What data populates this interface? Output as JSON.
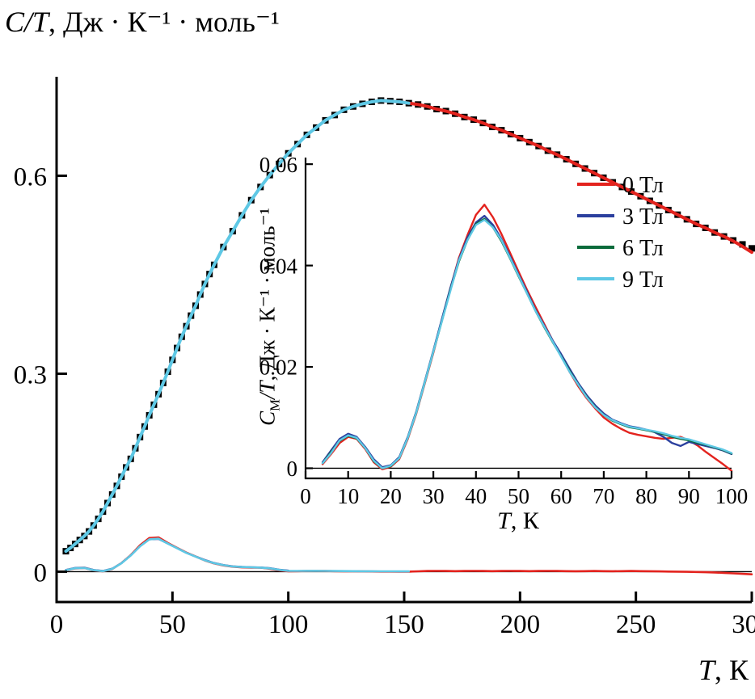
{
  "legend": {
    "items": [
      {
        "label": "0 Тл",
        "color": "#e3231e"
      },
      {
        "label": "3 Тл",
        "color": "#2b3f9e"
      },
      {
        "label": "6 Тл",
        "color": "#0b6b3b"
      },
      {
        "label": "9 Тл",
        "color": "#5ec8e5"
      }
    ]
  },
  "chart_data": [
    {
      "id": "main",
      "type": "line",
      "title": "",
      "xlabel_var": "T",
      "xlabel_units": ", К",
      "ylabel_var": "C/T",
      "ylabel_units": ", Дж · К⁻¹ · моль⁻¹",
      "xlim": [
        0,
        300
      ],
      "ylim": [
        -0.046,
        0.75
      ],
      "xticks": [
        0,
        50,
        100,
        150,
        200,
        250,
        300
      ],
      "yticks": [
        0,
        0.3,
        0.6
      ],
      "ytick_labels": [
        "0",
        "0.3",
        "0.6"
      ],
      "zero_line": true,
      "series": [
        {
          "name": "total-heat-capacity-data",
          "color": "#000000",
          "marker": "square",
          "x": [
            4,
            6,
            8,
            10,
            12,
            14,
            16,
            18,
            20,
            22,
            24,
            26,
            28,
            30,
            32,
            34,
            36,
            38,
            40,
            42,
            44,
            46,
            48,
            50,
            52,
            54,
            56,
            58,
            60,
            62,
            64,
            66,
            68,
            72,
            76,
            80,
            84,
            88,
            92,
            96,
            100,
            104,
            108,
            112,
            116,
            120,
            124,
            128,
            132,
            136,
            140,
            144,
            148,
            152,
            156,
            160,
            164,
            168,
            172,
            176,
            180,
            184,
            188,
            192,
            196,
            200,
            204,
            208,
            212,
            216,
            220,
            224,
            228,
            232,
            236,
            240,
            244,
            248,
            252,
            256,
            260,
            264,
            268,
            272,
            276,
            280,
            284,
            288,
            292,
            296,
            300
          ],
          "y": [
            0.031,
            0.036,
            0.042,
            0.048,
            0.054,
            0.061,
            0.07,
            0.08,
            0.091,
            0.104,
            0.117,
            0.13,
            0.144,
            0.158,
            0.171,
            0.187,
            0.204,
            0.22,
            0.237,
            0.253,
            0.269,
            0.286,
            0.303,
            0.321,
            0.339,
            0.356,
            0.372,
            0.388,
            0.403,
            0.42,
            0.436,
            0.451,
            0.465,
            0.492,
            0.516,
            0.54,
            0.563,
            0.583,
            0.601,
            0.618,
            0.634,
            0.648,
            0.662,
            0.673,
            0.684,
            0.692,
            0.7,
            0.705,
            0.709,
            0.712,
            0.714,
            0.713,
            0.712,
            0.71,
            0.708,
            0.705,
            0.701,
            0.698,
            0.694,
            0.689,
            0.685,
            0.68,
            0.674,
            0.669,
            0.663,
            0.657,
            0.651,
            0.645,
            0.638,
            0.632,
            0.625,
            0.618,
            0.611,
            0.604,
            0.597,
            0.59,
            0.583,
            0.576,
            0.569,
            0.562,
            0.555,
            0.548,
            0.541,
            0.534,
            0.527,
            0.521,
            0.514,
            0.508,
            0.502,
            0.496,
            0.49
          ]
        },
        {
          "name": "fit-high-T-0T",
          "color": "#e3231e",
          "width": 4,
          "x": [
            140,
            144,
            148,
            152,
            156,
            160,
            164,
            168,
            172,
            176,
            180,
            184,
            188,
            192,
            196,
            200,
            204,
            208,
            212,
            216,
            220,
            224,
            228,
            232,
            236,
            240,
            244,
            248,
            252,
            256,
            260,
            264,
            268,
            272,
            276,
            280,
            284,
            288,
            292,
            296,
            300
          ],
          "y": [
            0.714,
            0.713,
            0.712,
            0.71,
            0.708,
            0.705,
            0.701,
            0.698,
            0.694,
            0.689,
            0.685,
            0.68,
            0.674,
            0.669,
            0.663,
            0.657,
            0.651,
            0.645,
            0.638,
            0.632,
            0.625,
            0.618,
            0.611,
            0.604,
            0.597,
            0.59,
            0.583,
            0.576,
            0.569,
            0.562,
            0.555,
            0.548,
            0.541,
            0.534,
            0.527,
            0.521,
            0.514,
            0.508,
            0.501,
            0.493,
            0.484
          ]
        },
        {
          "name": "fit-low-T-9T",
          "color": "#5ec8e5",
          "width": 4,
          "x": [
            4,
            6,
            8,
            10,
            12,
            14,
            16,
            18,
            20,
            22,
            24,
            26,
            28,
            30,
            32,
            34,
            36,
            38,
            40,
            42,
            44,
            46,
            48,
            50,
            52,
            54,
            56,
            58,
            60,
            62,
            64,
            66,
            68,
            72,
            76,
            80,
            84,
            88,
            92,
            96,
            100,
            104,
            108,
            112,
            116,
            120,
            124,
            128,
            132,
            136,
            140,
            144,
            148,
            152
          ],
          "y": [
            0.031,
            0.036,
            0.042,
            0.048,
            0.054,
            0.061,
            0.07,
            0.08,
            0.091,
            0.104,
            0.117,
            0.13,
            0.144,
            0.158,
            0.171,
            0.187,
            0.204,
            0.22,
            0.237,
            0.253,
            0.269,
            0.286,
            0.303,
            0.321,
            0.339,
            0.356,
            0.372,
            0.388,
            0.403,
            0.42,
            0.436,
            0.451,
            0.465,
            0.492,
            0.516,
            0.54,
            0.563,
            0.583,
            0.601,
            0.618,
            0.634,
            0.648,
            0.662,
            0.673,
            0.684,
            0.692,
            0.7,
            0.705,
            0.709,
            0.712,
            0.714,
            0.713,
            0.712,
            0.71
          ]
        },
        {
          "name": "magnetic-contribution-3T",
          "color": "#2b3f9e",
          "width": 2.6,
          "x": [
            4,
            8,
            12,
            16,
            20,
            24,
            28,
            32,
            36,
            40,
            44,
            48,
            52,
            56,
            60,
            64,
            68,
            72,
            76,
            80,
            84,
            88,
            92,
            96,
            100
          ],
          "y": [
            0.0025,
            0.0055,
            0.006,
            0.0025,
            0.001,
            0.0045,
            0.013,
            0.0248,
            0.0388,
            0.0492,
            0.0498,
            0.0428,
            0.0358,
            0.0288,
            0.023,
            0.0175,
            0.013,
            0.01,
            0.008,
            0.0072,
            0.0066,
            0.0063,
            0.0052,
            0.003,
            0.0015
          ]
        },
        {
          "name": "magnetic-contribution-0T",
          "color": "#e3231e",
          "width": 2.6,
          "x": [
            4,
            8,
            12,
            16,
            20,
            24,
            28,
            32,
            36,
            40,
            44,
            48,
            52,
            56,
            60,
            64,
            68,
            72,
            76,
            80,
            84,
            88,
            92,
            96,
            100,
            104,
            108,
            112,
            116,
            120,
            124,
            128,
            132,
            136,
            140,
            144,
            148,
            152,
            156,
            160,
            164,
            168,
            172,
            176,
            180,
            184,
            188,
            192,
            196,
            200,
            204,
            208,
            212,
            216,
            220,
            224,
            228,
            232,
            236,
            240,
            244,
            248,
            252,
            256,
            260,
            264,
            268,
            272,
            276,
            280,
            284,
            288,
            292,
            296,
            300
          ],
          "y": [
            0.002,
            0.005,
            0.0055,
            0.002,
            0.0005,
            0.004,
            0.013,
            0.025,
            0.04,
            0.051,
            0.052,
            0.0435,
            0.036,
            0.029,
            0.023,
            0.017,
            0.0125,
            0.0095,
            0.0075,
            0.0065,
            0.006,
            0.006,
            0.0045,
            0.002,
            0.0005,
            0.0008,
            0.001,
            0.0012,
            0.001,
            0.0008,
            0.0006,
            0.0005,
            0.0004,
            0.0003,
            0.0002,
            0.0002,
            0.0001,
            0,
            0.0005,
            0.001,
            0.0012,
            0.001,
            0.0008,
            0.001,
            0.0012,
            0.001,
            0.0008,
            0.001,
            0.0012,
            0.001,
            0.0008,
            0.001,
            0.0012,
            0.001,
            0.0008,
            0.0006,
            0.0008,
            0.001,
            0.0008,
            0.0006,
            0.0008,
            0.001,
            0.0008,
            0.0006,
            0.0004,
            0.0002,
            0,
            -0.0002,
            -0.0004,
            -0.0008,
            -0.0012,
            -0.0018,
            -0.0025,
            -0.0032,
            -0.004
          ]
        },
        {
          "name": "magnetic-contribution-9T",
          "color": "#5ec8e5",
          "width": 2.6,
          "x": [
            4,
            8,
            12,
            16,
            20,
            24,
            28,
            32,
            36,
            40,
            44,
            48,
            52,
            56,
            60,
            64,
            68,
            72,
            76,
            80,
            84,
            88,
            92,
            96,
            100,
            104,
            108,
            112,
            116,
            120,
            124,
            128,
            132,
            136,
            140,
            144,
            148,
            152
          ],
          "y": [
            0.0022,
            0.0052,
            0.0056,
            0.0022,
            0.0008,
            0.0042,
            0.0128,
            0.0245,
            0.0385,
            0.049,
            0.05,
            0.0425,
            0.0355,
            0.0285,
            0.0228,
            0.0172,
            0.0128,
            0.0098,
            0.0078,
            0.007,
            0.0065,
            0.0062,
            0.005,
            0.0028,
            0.0012,
            0.0012,
            0.0013,
            0.0013,
            0.0012,
            0.001,
            0.0009,
            0.0008,
            0.0007,
            0.0006,
            0.0005,
            0.0005,
            0.0004,
            0.0004
          ]
        }
      ]
    },
    {
      "id": "inset",
      "type": "line",
      "title": "",
      "xlabel_var": "T",
      "xlabel_units": ", К",
      "ylabel_c": "C",
      "ylabel_sub": "М",
      "ylabel_rest": "/T",
      "ylabel_units": ", Дж · К⁻¹ · моль⁻¹",
      "xlim": [
        0,
        100
      ],
      "ylim": [
        -0.002,
        0.0613
      ],
      "xticks": [
        0,
        10,
        20,
        30,
        40,
        50,
        60,
        70,
        80,
        90,
        100
      ],
      "yticks": [
        0,
        0.02,
        0.04,
        0.06
      ],
      "ytick_labels": [
        "0",
        "0.02",
        "0.04",
        "0.06"
      ],
      "zero_line": true,
      "x": [
        4,
        6,
        8,
        10,
        12,
        14,
        16,
        18,
        20,
        22,
        24,
        26,
        28,
        30,
        32,
        34,
        36,
        38,
        40,
        42,
        44,
        46,
        48,
        50,
        52,
        54,
        56,
        58,
        60,
        62,
        64,
        66,
        68,
        70,
        72,
        74,
        76,
        78,
        80,
        82,
        84,
        86,
        88,
        90,
        92,
        94,
        96,
        98,
        100
      ],
      "series": [
        {
          "name": "CmT-0T",
          "color": "#e3231e",
          "width": 2.4,
          "y": [
            0.0008,
            0.0028,
            0.005,
            0.0062,
            0.0058,
            0.0038,
            0.0012,
            -0.0002,
            0.0003,
            0.0018,
            0.0058,
            0.0108,
            0.0168,
            0.0228,
            0.0292,
            0.0355,
            0.0415,
            0.046,
            0.05,
            0.052,
            0.0495,
            0.0462,
            0.0425,
            0.0388,
            0.0352,
            0.0318,
            0.0285,
            0.0252,
            0.0222,
            0.019,
            0.0162,
            0.0138,
            0.0118,
            0.01,
            0.0088,
            0.0078,
            0.007,
            0.0066,
            0.0063,
            0.006,
            0.0058,
            0.006,
            0.0062,
            0.0055,
            0.0045,
            0.0032,
            0.002,
            0.0008,
            -0.0005
          ]
        },
        {
          "name": "CmT-3T",
          "color": "#2b3f9e",
          "width": 2.4,
          "y": [
            0.0012,
            0.0035,
            0.0058,
            0.0068,
            0.0062,
            0.0042,
            0.0018,
            0.0002,
            0.0006,
            0.0022,
            0.0062,
            0.0112,
            0.0172,
            0.0232,
            0.0294,
            0.0356,
            0.0412,
            0.0455,
            0.0485,
            0.0498,
            0.048,
            0.0452,
            0.0418,
            0.0382,
            0.0348,
            0.0312,
            0.0282,
            0.0252,
            0.0225,
            0.0196,
            0.0168,
            0.0144,
            0.0124,
            0.0108,
            0.0096,
            0.0089,
            0.0083,
            0.008,
            0.0076,
            0.0071,
            0.0062,
            0.005,
            0.0044,
            0.0052,
            0.0048,
            0.0044,
            0.004,
            0.0035,
            0.0028
          ]
        },
        {
          "name": "CmT-6T",
          "color": "#0b6b3b",
          "width": 2.4,
          "y": [
            0.001,
            0.0032,
            0.0054,
            0.0064,
            0.0059,
            0.004,
            0.0014,
            0,
            0.0004,
            0.002,
            0.006,
            0.011,
            0.017,
            0.023,
            0.029,
            0.0352,
            0.0408,
            0.045,
            0.0482,
            0.0492,
            0.0475,
            0.0448,
            0.0414,
            0.0379,
            0.0345,
            0.031,
            0.0279,
            0.0249,
            0.0221,
            0.0192,
            0.0165,
            0.0141,
            0.0121,
            0.0105,
            0.0094,
            0.0087,
            0.0081,
            0.0078,
            0.0075,
            0.0072,
            0.0067,
            0.0062,
            0.0058,
            0.0055,
            0.005,
            0.0046,
            0.0041,
            0.0036,
            0.0029
          ]
        },
        {
          "name": "CmT-9T",
          "color": "#5ec8e5",
          "width": 2.4,
          "y": [
            0.001,
            0.003,
            0.0055,
            0.0065,
            0.006,
            0.004,
            0.0015,
            0,
            0.0005,
            0.002,
            0.006,
            0.011,
            0.017,
            0.023,
            0.029,
            0.035,
            0.041,
            0.045,
            0.048,
            0.049,
            0.0475,
            0.045,
            0.0415,
            0.038,
            0.0345,
            0.031,
            0.028,
            0.025,
            0.022,
            0.019,
            0.0165,
            0.014,
            0.012,
            0.0105,
            0.0095,
            0.0088,
            0.0082,
            0.0079,
            0.0076,
            0.0073,
            0.0069,
            0.0064,
            0.006,
            0.0057,
            0.0052,
            0.0047,
            0.0042,
            0.0037,
            0.003
          ]
        }
      ]
    }
  ]
}
